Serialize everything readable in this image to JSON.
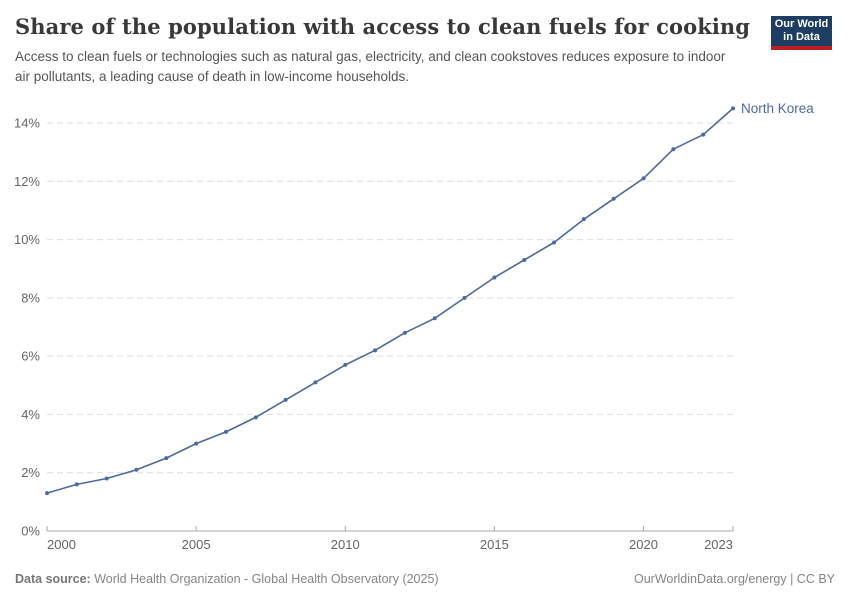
{
  "header": {
    "title": "Share of the population with access to clean fuels for cooking",
    "subtitle": "Access to clean fuels or technologies such as natural gas, electricity, and clean cookstoves reduces exposure to indoor air pollutants, a leading cause of death in low-income households.",
    "logo_line1": "Our World",
    "logo_line2": "in Data"
  },
  "chart_data": {
    "type": "line",
    "title": "Share of the population with access to clean fuels for cooking",
    "x": [
      2000,
      2001,
      2002,
      2003,
      2004,
      2005,
      2006,
      2007,
      2008,
      2009,
      2010,
      2011,
      2012,
      2013,
      2014,
      2015,
      2016,
      2017,
      2018,
      2019,
      2020,
      2021,
      2022,
      2023
    ],
    "series": [
      {
        "name": "North Korea",
        "color": "#4c6a9c",
        "values": [
          1.3,
          1.6,
          1.8,
          2.1,
          2.5,
          3.0,
          3.4,
          3.9,
          4.5,
          5.1,
          5.7,
          6.2,
          6.8,
          7.3,
          8.0,
          8.7,
          9.3,
          9.9,
          10.7,
          11.4,
          12.1,
          13.1,
          13.6,
          14.5
        ]
      }
    ],
    "xlim": [
      2000,
      2023
    ],
    "ylim": [
      0,
      14
    ],
    "x_ticks": [
      2000,
      2005,
      2010,
      2015,
      2020,
      2023
    ],
    "y_ticks": [
      0,
      2,
      4,
      6,
      8,
      10,
      12,
      14
    ],
    "y_tick_suffix": "%",
    "grid": "horizontal-dashed",
    "legend_position": "end-of-line-label"
  },
  "footer": {
    "datasource_label": "Data source:",
    "datasource_value": " World Health Organization - Global Health Observatory (2025)",
    "credit": "OurWorldinData.org/energy | CC BY"
  },
  "colors": {
    "line": "#4c6a9c",
    "gridline": "#dedede",
    "axis": "#a8a8a8",
    "tick_label": "#666666",
    "logo_bg": "#1d3d63",
    "logo_red": "#bc2025"
  }
}
